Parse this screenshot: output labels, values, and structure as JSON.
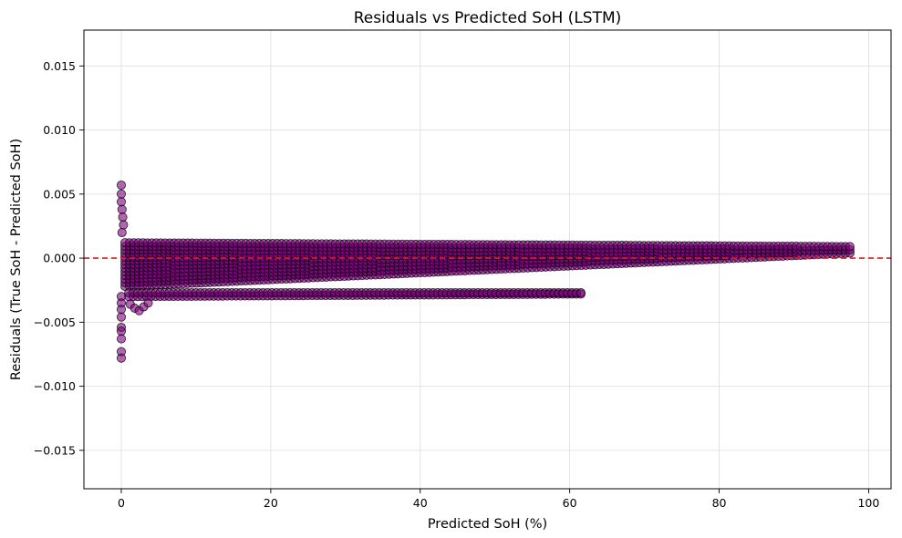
{
  "chart_data": {
    "type": "scatter",
    "title": "Residuals vs Predicted SoH (LSTM)",
    "xlabel": "Predicted SoH (%)",
    "ylabel": "Residuals (True SoH - Predicted SoH)",
    "xlim": [
      -5,
      103
    ],
    "ylim": [
      -0.018,
      0.0178
    ],
    "x_ticks": [
      0,
      20,
      40,
      60,
      80,
      100
    ],
    "x_tick_labels": [
      "0",
      "20",
      "40",
      "60",
      "80",
      "100"
    ],
    "y_ticks": [
      0.015,
      0.01,
      0.005,
      0.0,
      -0.005,
      -0.01,
      -0.015
    ],
    "y_tick_labels": [
      "0.015",
      "0.010",
      "0.005",
      "0.000",
      "−0.005",
      "−0.010",
      "−0.015"
    ],
    "grid": true,
    "reference_line": {
      "y": 0,
      "color": "#e31a1c",
      "style": "dashed"
    },
    "colors": {
      "marker_fill": "#800080",
      "marker_edge": "#000000"
    },
    "series": [
      {
        "bands": [
          {
            "x_start": 0.5,
            "x_end": 97.5,
            "y_upper_start": 0.0012,
            "y_upper_end": 0.0009,
            "y_lower_start": -0.0022,
            "y_lower_end": 0.0004
          },
          {
            "x_start": 1,
            "x_end": 61.5,
            "y_upper_start": -0.0027,
            "y_upper_end": -0.0027,
            "y_lower_start": -0.003,
            "y_lower_end": -0.0028
          }
        ],
        "spike_points": [
          [
            0,
            0.0057
          ],
          [
            0,
            0.005
          ],
          [
            0,
            0.0044
          ],
          [
            0.1,
            0.0038
          ],
          [
            0.2,
            0.0032
          ],
          [
            0.3,
            0.0026
          ],
          [
            0.1,
            0.002
          ],
          [
            0,
            -0.003
          ],
          [
            0,
            -0.0035
          ],
          [
            0,
            -0.004
          ],
          [
            0,
            -0.0046
          ],
          [
            0,
            -0.0054
          ],
          [
            0,
            -0.0057
          ],
          [
            0,
            -0.0063
          ],
          [
            0,
            -0.0073
          ],
          [
            0,
            -0.0078
          ],
          [
            1.2,
            -0.0036
          ],
          [
            1.8,
            -0.0039
          ],
          [
            2.4,
            -0.0041
          ],
          [
            3.0,
            -0.0038
          ],
          [
            3.6,
            -0.0035
          ]
        ]
      }
    ]
  }
}
